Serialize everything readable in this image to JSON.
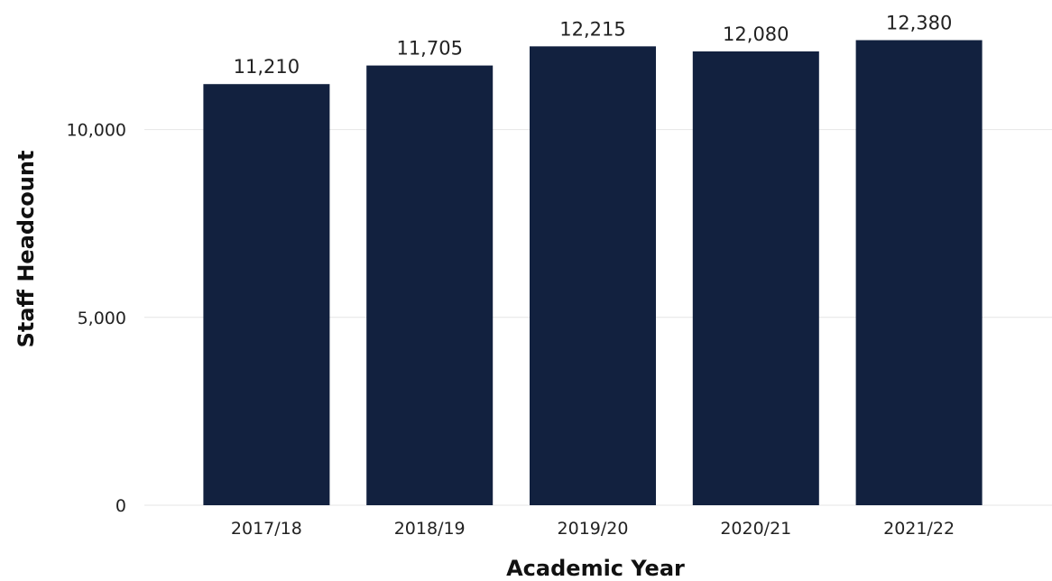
{
  "chart_data": {
    "type": "bar",
    "title": "",
    "xlabel": "Academic Year",
    "ylabel": "Staff Headcount",
    "categories": [
      "2017/18",
      "2018/19",
      "2019/20",
      "2020/21",
      "2021/22"
    ],
    "values": [
      11210,
      11705,
      12215,
      12080,
      12380
    ],
    "value_labels": [
      "11,210",
      "11,705",
      "12,215",
      "12,080",
      "12,380"
    ],
    "ylim": [
      0,
      12800
    ],
    "yticks": [
      0,
      5000,
      10000
    ],
    "ytick_labels": [
      "0",
      "5,000",
      "10,000"
    ],
    "grid": true,
    "legend": "none",
    "bar_color": "#12213f"
  }
}
